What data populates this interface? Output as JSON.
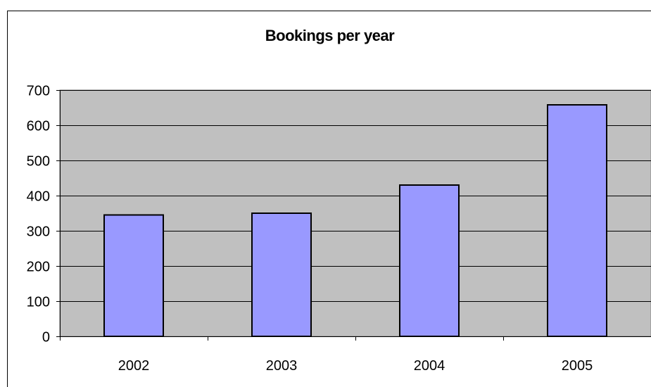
{
  "chart_data": {
    "type": "bar",
    "title": "Bookings per year",
    "xlabel": "",
    "ylabel": "",
    "categories": [
      "2002",
      "2003",
      "2004",
      "2005"
    ],
    "values": [
      345,
      350,
      430,
      658
    ],
    "ylim": [
      0,
      700
    ],
    "yticks": [
      0,
      100,
      200,
      300,
      400,
      500,
      600,
      700
    ],
    "grid": true,
    "legend": "none",
    "colors": {
      "bar_fill": "#9999ff",
      "bar_stroke": "#000000",
      "plot_background": "#c0c0c0",
      "gridline": "#000000"
    }
  }
}
